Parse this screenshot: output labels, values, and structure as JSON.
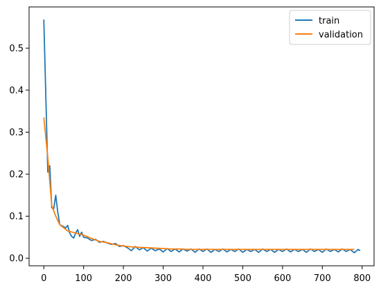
{
  "chart_data": {
    "type": "line",
    "title": "",
    "xlabel": "",
    "ylabel": "",
    "xlim": [
      -37,
      830
    ],
    "ylim": [
      -0.018,
      0.598
    ],
    "xticks": [
      0,
      100,
      200,
      300,
      400,
      500,
      600,
      700,
      800
    ],
    "yticks": [
      0.0,
      0.1,
      0.2,
      0.3,
      0.4,
      0.5
    ],
    "xtick_labels": [
      "0",
      "100",
      "200",
      "300",
      "400",
      "500",
      "600",
      "700",
      "800"
    ],
    "ytick_labels": [
      "0.0",
      "0.1",
      "0.2",
      "0.3",
      "0.4",
      "0.5"
    ],
    "grid": false,
    "legend": {
      "position": "upper-right",
      "labels": [
        "train",
        "validation"
      ]
    },
    "series": [
      {
        "name": "train",
        "color": "#1f77b4",
        "x": [
          0,
          10,
          15,
          20,
          25,
          30,
          35,
          40,
          50,
          55,
          60,
          65,
          70,
          75,
          80,
          85,
          90,
          95,
          100,
          110,
          120,
          130,
          140,
          150,
          160,
          170,
          180,
          190,
          200,
          210,
          220,
          230,
          240,
          250,
          260,
          270,
          280,
          290,
          300,
          310,
          320,
          330,
          340,
          350,
          360,
          370,
          380,
          390,
          400,
          410,
          420,
          430,
          440,
          450,
          460,
          470,
          480,
          490,
          500,
          510,
          520,
          530,
          540,
          550,
          560,
          570,
          580,
          590,
          600,
          610,
          620,
          630,
          640,
          650,
          660,
          670,
          680,
          690,
          700,
          710,
          720,
          730,
          740,
          750,
          760,
          770,
          780,
          790,
          795
        ],
        "y": [
          0.568,
          0.205,
          0.22,
          0.12,
          0.118,
          0.15,
          0.11,
          0.08,
          0.075,
          0.072,
          0.078,
          0.06,
          0.052,
          0.048,
          0.06,
          0.068,
          0.052,
          0.062,
          0.05,
          0.048,
          0.042,
          0.045,
          0.038,
          0.04,
          0.036,
          0.033,
          0.035,
          0.028,
          0.03,
          0.025,
          0.018,
          0.028,
          0.02,
          0.025,
          0.017,
          0.024,
          0.018,
          0.022,
          0.015,
          0.023,
          0.016,
          0.022,
          0.015,
          0.022,
          0.017,
          0.022,
          0.014,
          0.022,
          0.016,
          0.022,
          0.014,
          0.021,
          0.016,
          0.022,
          0.015,
          0.021,
          0.016,
          0.022,
          0.014,
          0.021,
          0.016,
          0.021,
          0.014,
          0.022,
          0.016,
          0.021,
          0.014,
          0.021,
          0.016,
          0.022,
          0.015,
          0.021,
          0.016,
          0.021,
          0.014,
          0.022,
          0.016,
          0.021,
          0.014,
          0.022,
          0.016,
          0.021,
          0.015,
          0.022,
          0.016,
          0.021,
          0.013,
          0.021,
          0.018
        ]
      },
      {
        "name": "validation",
        "color": "#ff7f0e",
        "x": [
          0,
          10,
          20,
          30,
          40,
          60,
          80,
          100,
          120,
          140,
          160,
          180,
          200,
          220,
          240,
          260,
          280,
          300,
          320,
          340,
          360,
          380,
          400,
          420,
          440,
          460,
          480,
          500,
          520,
          540,
          560,
          580,
          600,
          620,
          640,
          660,
          680,
          700,
          720,
          740,
          760,
          780
        ],
        "y": [
          0.335,
          0.24,
          0.125,
          0.1,
          0.08,
          0.065,
          0.06,
          0.055,
          0.047,
          0.04,
          0.037,
          0.032,
          0.029,
          0.027,
          0.026,
          0.025,
          0.024,
          0.023,
          0.022,
          0.022,
          0.021,
          0.021,
          0.021,
          0.021,
          0.021,
          0.021,
          0.021,
          0.021,
          0.021,
          0.021,
          0.021,
          0.021,
          0.021,
          0.021,
          0.021,
          0.021,
          0.021,
          0.021,
          0.021,
          0.021,
          0.021,
          0.021
        ]
      }
    ]
  }
}
